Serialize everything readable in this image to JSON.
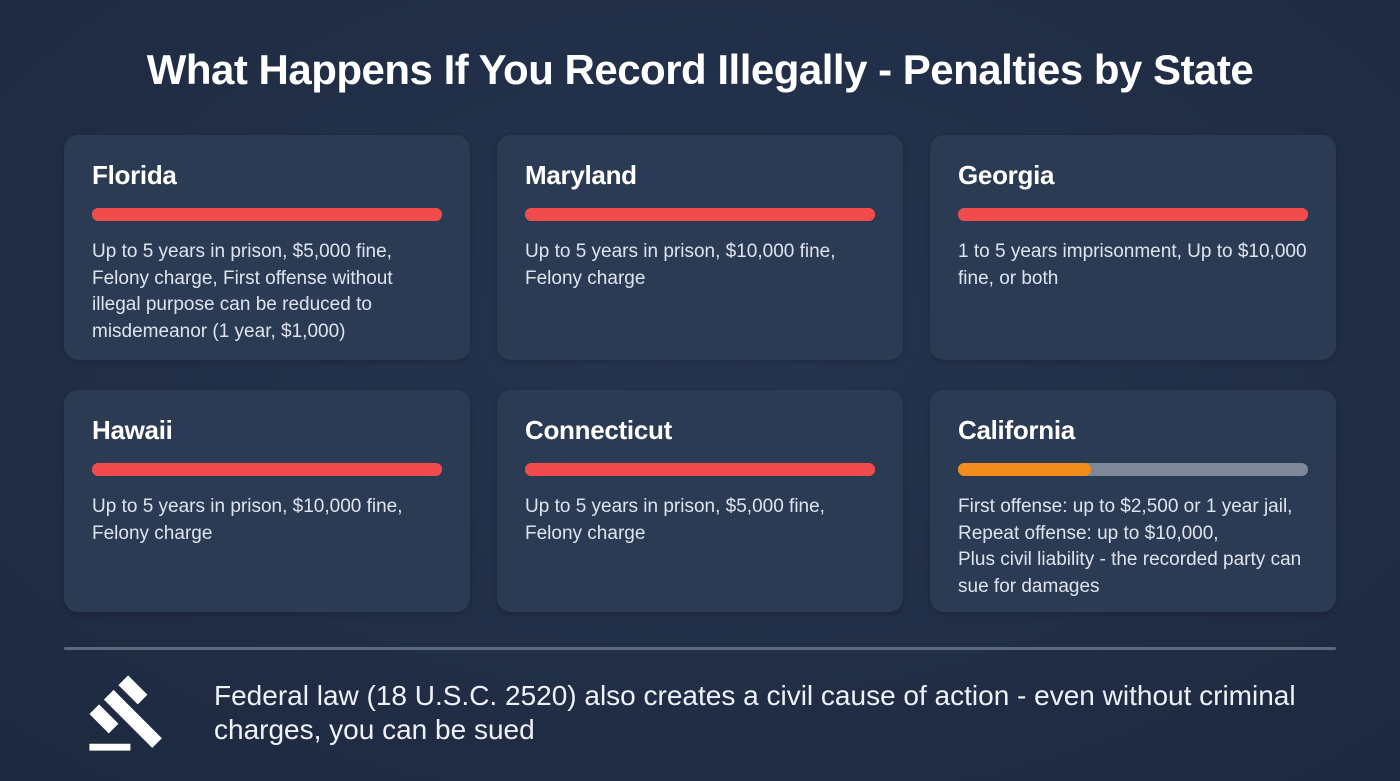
{
  "title": "What Happens If You Record Illegally - Penalties by State",
  "colors": {
    "background_center": "#253450",
    "background_edge": "#111a2b",
    "card": "#2c3b54",
    "bar_red": "#f14b4b",
    "bar_orange": "#f28c1d",
    "bar_track": "#7e8899",
    "heading_text": "#ffffff",
    "body_text": "#dde4ef",
    "divider": "#5c6a7e"
  },
  "cards": [
    {
      "state": "Florida",
      "bar": {
        "color": "#f14b4b",
        "fill_pct": 100
      },
      "description": "Up to 5 years in prison, $5,000 fine, Felony charge, First offense without illegal purpose can be reduced to misdemeanor (1 year, $1,000)"
    },
    {
      "state": "Maryland",
      "bar": {
        "color": "#f14b4b",
        "fill_pct": 100
      },
      "description": "Up to 5 years in prison, $10,000 fine, Felony charge"
    },
    {
      "state": "Georgia",
      "bar": {
        "color": "#f14b4b",
        "fill_pct": 100
      },
      "description": "1 to 5 years imprisonment, Up to $10,000 fine, or both"
    },
    {
      "state": "Hawaii",
      "bar": {
        "color": "#f14b4b",
        "fill_pct": 100
      },
      "description": "Up to 5 years in prison, $10,000 fine, Felony charge"
    },
    {
      "state": "Connecticut",
      "bar": {
        "color": "#f14b4b",
        "fill_pct": 100
      },
      "description": "Up to 5 years in prison, $5,000 fine, Felony charge"
    },
    {
      "state": "California",
      "bar": {
        "color": "#f28c1d",
        "fill_pct": 38
      },
      "description": "First offense: up to $2,500 or 1 year jail,\nRepeat offense: up to $10,000,\nPlus civil liability - the recorded party can sue for damages"
    }
  ],
  "footer": {
    "icon": "gavel-icon",
    "text": "Federal law (18 U.S.C. 2520) also creates a civil cause of action - even without criminal charges, you can be sued"
  }
}
